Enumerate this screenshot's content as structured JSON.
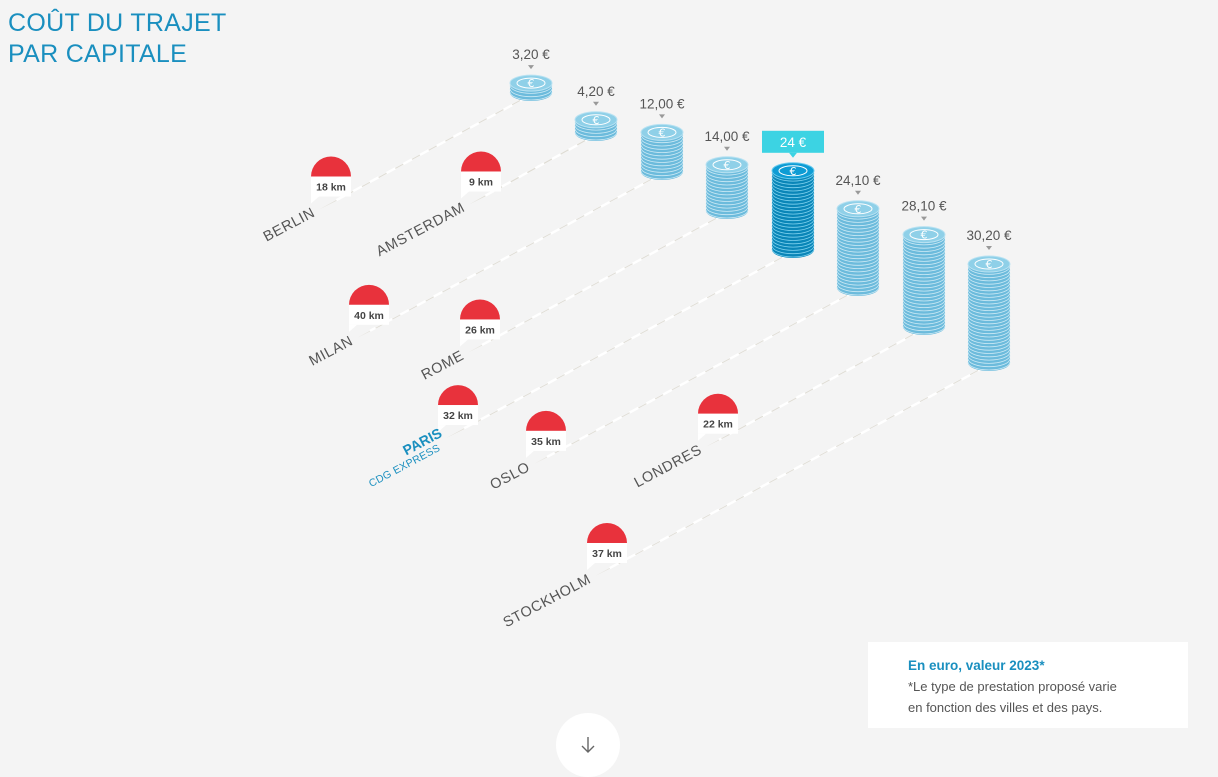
{
  "title": {
    "line1": "COÛT DU TRAJET",
    "line2": "PAR CAPITALE"
  },
  "colors": {
    "accent": "#1a8fbf",
    "coin_light": "#8fd0e8",
    "coin_highlight": "#0e9cd4",
    "tag_highlight": "#3cd3e3",
    "marker_red": "#e8323c",
    "road": "#dedbd2"
  },
  "chart_data": {
    "type": "bar",
    "unit": "€",
    "cities": [
      {
        "name": "BERLIN",
        "distance_label": "18 km",
        "distance_km": 18,
        "price_label": "3,20 €",
        "price": 3.2
      },
      {
        "name": "AMSTERDAM",
        "distance_label": "9 km",
        "distance_km": 9,
        "price_label": "4,20 €",
        "price": 4.2
      },
      {
        "name": "MILAN",
        "distance_label": "40 km",
        "distance_km": 40,
        "price_label": "12,00 €",
        "price": 12.0
      },
      {
        "name": "ROME",
        "distance_label": "26 km",
        "distance_km": 26,
        "price_label": "14,00 €",
        "price": 14.0
      },
      {
        "name": "PARIS",
        "subtitle": "CDG EXPRESS",
        "distance_label": "32 km",
        "distance_km": 32,
        "price_label": "24 €",
        "price": 24,
        "highlight": true
      },
      {
        "name": "OSLO",
        "distance_label": "35 km",
        "distance_km": 35,
        "price_label": "24,10 €",
        "price": 24.1
      },
      {
        "name": "LONDRES",
        "distance_label": "22 km",
        "distance_km": 22,
        "price_label": "28,10 €",
        "price": 28.1
      },
      {
        "name": "STOCKHOLM",
        "distance_label": "37 km",
        "distance_km": 37,
        "price_label": "30,20 €",
        "price": 30.2
      }
    ]
  },
  "note": {
    "title": "En euro, valeur 2023*",
    "line1": "*Le type de prestation proposé varie",
    "line2": "en fonction des villes et des pays."
  },
  "scroll_button": {
    "icon": "arrow-down-icon"
  }
}
